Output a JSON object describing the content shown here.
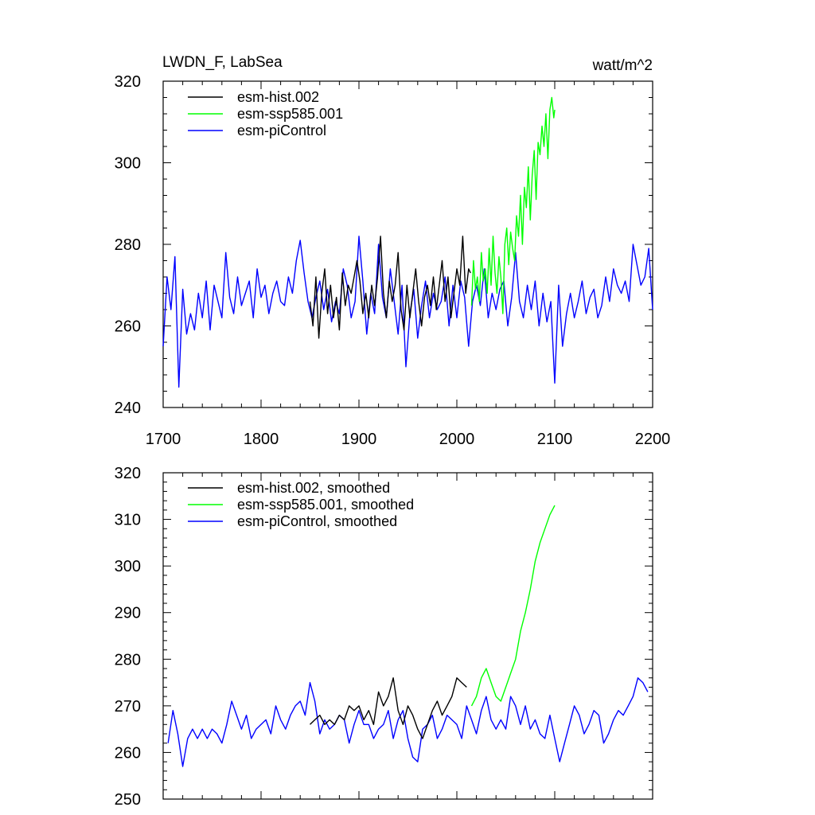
{
  "chart_data": [
    {
      "type": "line",
      "title_left": "LWDN_F, LabSea",
      "title_right": "watt/m^2",
      "xlim": [
        1700,
        2200
      ],
      "ylim": [
        240,
        320
      ],
      "x_ticks": [
        1700,
        1800,
        1900,
        2000,
        2100,
        2200
      ],
      "x_tick_labels": [
        "1700",
        "1800",
        "1900",
        "2000",
        "2100",
        "2200"
      ],
      "y_ticks": [
        240,
        260,
        280,
        300,
        320
      ],
      "y_tick_labels": [
        "240",
        "260",
        "280",
        "300",
        "320"
      ],
      "legend": [
        "esm-hist.002",
        "esm-ssp585.001",
        "esm-piControl"
      ],
      "series": [
        {
          "name": "esm-piControl",
          "color": "#0000ff",
          "x": [
            1700,
            1704,
            1708,
            1712,
            1716,
            1720,
            1724,
            1728,
            1732,
            1736,
            1740,
            1744,
            1748,
            1752,
            1756,
            1760,
            1764,
            1768,
            1772,
            1776,
            1780,
            1784,
            1788,
            1792,
            1796,
            1800,
            1804,
            1808,
            1812,
            1816,
            1820,
            1824,
            1828,
            1832,
            1836,
            1840,
            1844,
            1848,
            1852,
            1856,
            1860,
            1864,
            1868,
            1872,
            1876,
            1880,
            1884,
            1888,
            1892,
            1896,
            1900,
            1904,
            1908,
            1912,
            1916,
            1920,
            1924,
            1928,
            1932,
            1936,
            1940,
            1944,
            1948,
            1952,
            1956,
            1960,
            1964,
            1968,
            1972,
            1976,
            1980,
            1984,
            1988,
            1992,
            1996,
            2000,
            2004,
            2008,
            2012,
            2016,
            2020,
            2024,
            2028,
            2032,
            2036,
            2040,
            2044,
            2048,
            2052,
            2056,
            2060,
            2064,
            2068,
            2072,
            2076,
            2080,
            2084,
            2088,
            2092,
            2096,
            2100,
            2104,
            2108,
            2112,
            2116,
            2120,
            2124,
            2128,
            2132,
            2136,
            2140,
            2144,
            2148,
            2152,
            2156,
            2160,
            2164,
            2168,
            2172,
            2176,
            2180,
            2184,
            2188,
            2192,
            2196,
            2200
          ],
          "values": [
            255,
            272,
            264,
            277,
            245,
            269,
            258,
            263,
            259,
            268,
            262,
            271,
            259,
            270,
            266,
            262,
            278,
            267,
            263,
            272,
            265,
            268,
            271,
            262,
            274,
            267,
            270,
            263,
            268,
            271,
            266,
            265,
            272,
            268,
            276,
            281,
            273,
            266,
            262,
            267,
            271,
            264,
            269,
            261,
            266,
            263,
            274,
            270,
            262,
            266,
            282,
            271,
            258,
            268,
            263,
            280,
            267,
            262,
            274,
            266,
            258,
            270,
            250,
            263,
            269,
            257,
            265,
            271,
            262,
            268,
            264,
            266,
            272,
            260,
            270,
            262,
            271,
            267,
            255,
            266,
            270,
            265,
            274,
            262,
            268,
            264,
            269,
            271,
            260,
            267,
            278,
            266,
            262,
            270,
            264,
            271,
            260,
            268,
            261,
            266,
            246,
            270,
            255,
            263,
            268,
            262,
            266,
            271,
            263,
            267,
            269,
            262,
            265,
            272,
            266,
            274,
            270,
            268,
            271,
            266,
            280,
            275,
            270,
            272,
            279,
            264
          ]
        },
        {
          "name": "esm-hist.002",
          "color": "#000000",
          "x": [
            1850,
            1853,
            1856,
            1859,
            1862,
            1865,
            1868,
            1871,
            1874,
            1877,
            1880,
            1883,
            1886,
            1889,
            1892,
            1895,
            1898,
            1901,
            1904,
            1907,
            1910,
            1913,
            1916,
            1919,
            1922,
            1925,
            1928,
            1931,
            1934,
            1937,
            1940,
            1943,
            1946,
            1949,
            1952,
            1955,
            1958,
            1961,
            1964,
            1967,
            1970,
            1973,
            1976,
            1979,
            1982,
            1985,
            1988,
            1991,
            1994,
            1997,
            2000,
            2003,
            2006,
            2009,
            2012,
            2014
          ],
          "values": [
            266,
            260,
            272,
            257,
            268,
            274,
            263,
            270,
            262,
            267,
            259,
            273,
            265,
            270,
            268,
            272,
            276,
            271,
            263,
            268,
            262,
            270,
            265,
            272,
            282,
            268,
            262,
            271,
            266,
            270,
            278,
            264,
            259,
            270,
            262,
            268,
            274,
            266,
            260,
            267,
            270,
            265,
            272,
            264,
            270,
            276,
            266,
            272,
            262,
            268,
            274,
            270,
            282,
            268,
            274,
            273
          ]
        },
        {
          "name": "esm-ssp585.001",
          "color": "#00ff00",
          "x": [
            2015,
            2017,
            2019,
            2021,
            2023,
            2025,
            2027,
            2029,
            2031,
            2033,
            2035,
            2037,
            2039,
            2041,
            2043,
            2045,
            2047,
            2049,
            2051,
            2053,
            2055,
            2057,
            2059,
            2061,
            2063,
            2065,
            2067,
            2069,
            2071,
            2073,
            2075,
            2077,
            2079,
            2081,
            2083,
            2085,
            2087,
            2089,
            2091,
            2093,
            2095,
            2097,
            2099,
            2100
          ],
          "values": [
            265,
            276,
            269,
            272,
            266,
            278,
            271,
            274,
            268,
            279,
            270,
            282,
            273,
            268,
            277,
            272,
            263,
            280,
            284,
            275,
            283,
            279,
            276,
            287,
            282,
            292,
            280,
            294,
            289,
            299,
            286,
            297,
            303,
            291,
            305,
            302,
            309,
            304,
            312,
            301,
            313,
            316,
            311,
            313
          ]
        }
      ]
    },
    {
      "type": "line",
      "title_left": "",
      "title_right": "",
      "xlim": [
        1700,
        2200
      ],
      "ylim": [
        250,
        320
      ],
      "x_ticks": [
        1700,
        1800,
        1900,
        2000,
        2100,
        2200
      ],
      "y_ticks": [
        250,
        260,
        270,
        280,
        290,
        300,
        310,
        320
      ],
      "y_tick_labels": [
        "250",
        "260",
        "270",
        "280",
        "290",
        "300",
        "310",
        "320"
      ],
      "legend": [
        "esm-hist.002, smoothed",
        "esm-ssp585.001, smoothed",
        "esm-piControl, smoothed"
      ],
      "series": [
        {
          "name": "esm-piControl, smoothed",
          "color": "#0000ff",
          "x": [
            1705,
            1710,
            1715,
            1720,
            1725,
            1730,
            1735,
            1740,
            1745,
            1750,
            1755,
            1760,
            1765,
            1770,
            1775,
            1780,
            1785,
            1790,
            1795,
            1800,
            1805,
            1810,
            1815,
            1820,
            1825,
            1830,
            1835,
            1840,
            1845,
            1850,
            1855,
            1860,
            1865,
            1870,
            1875,
            1880,
            1885,
            1890,
            1895,
            1900,
            1905,
            1910,
            1915,
            1920,
            1925,
            1930,
            1935,
            1940,
            1945,
            1950,
            1955,
            1960,
            1965,
            1970,
            1975,
            1980,
            1985,
            1990,
            1995,
            2000,
            2005,
            2010,
            2015,
            2020,
            2025,
            2030,
            2035,
            2040,
            2045,
            2050,
            2055,
            2060,
            2065,
            2070,
            2075,
            2080,
            2085,
            2090,
            2095,
            2100,
            2105,
            2110,
            2115,
            2120,
            2125,
            2130,
            2135,
            2140,
            2145,
            2150,
            2155,
            2160,
            2165,
            2170,
            2175,
            2180,
            2185,
            2190,
            2195
          ],
          "values": [
            262,
            269,
            264,
            257,
            263,
            265,
            263,
            265,
            263,
            265,
            264,
            262,
            266,
            271,
            268,
            265,
            268,
            263,
            265,
            266,
            267,
            264,
            270,
            267,
            265,
            268,
            270,
            271,
            268,
            275,
            271,
            264,
            267,
            265,
            266,
            268,
            267,
            262,
            266,
            269,
            266,
            266,
            263,
            265,
            266,
            269,
            263,
            267,
            269,
            263,
            259,
            258,
            265,
            266,
            268,
            263,
            265,
            268,
            267,
            266,
            263,
            270,
            267,
            264,
            269,
            272,
            267,
            265,
            267,
            265,
            272,
            270,
            266,
            270,
            265,
            267,
            264,
            263,
            268,
            263,
            258,
            262,
            266,
            270,
            268,
            264,
            266,
            269,
            268,
            262,
            264,
            267,
            269,
            268,
            270,
            272,
            276,
            275,
            273
          ]
        },
        {
          "name": "esm-hist.002, smoothed",
          "color": "#000000",
          "x": [
            1850,
            1855,
            1860,
            1865,
            1870,
            1875,
            1880,
            1885,
            1890,
            1895,
            1900,
            1905,
            1910,
            1915,
            1920,
            1925,
            1930,
            1935,
            1940,
            1945,
            1950,
            1955,
            1960,
            1965,
            1970,
            1975,
            1980,
            1985,
            1990,
            1995,
            2000,
            2005,
            2010
          ],
          "values": [
            266,
            267,
            268,
            266,
            267,
            266,
            268,
            267,
            270,
            269,
            270,
            267,
            269,
            266,
            273,
            270,
            272,
            276,
            269,
            266,
            270,
            268,
            265,
            263,
            266,
            269,
            271,
            268,
            270,
            272,
            276,
            275,
            274
          ]
        },
        {
          "name": "esm-ssp585.001, smoothed",
          "color": "#00ff00",
          "x": [
            2015,
            2020,
            2025,
            2030,
            2035,
            2040,
            2045,
            2050,
            2055,
            2060,
            2065,
            2070,
            2075,
            2080,
            2085,
            2090,
            2095,
            2100
          ],
          "values": [
            270,
            272,
            276,
            278,
            275,
            272,
            271,
            274,
            277,
            280,
            286,
            290,
            295,
            301,
            305,
            308,
            311,
            313
          ]
        }
      ]
    }
  ]
}
